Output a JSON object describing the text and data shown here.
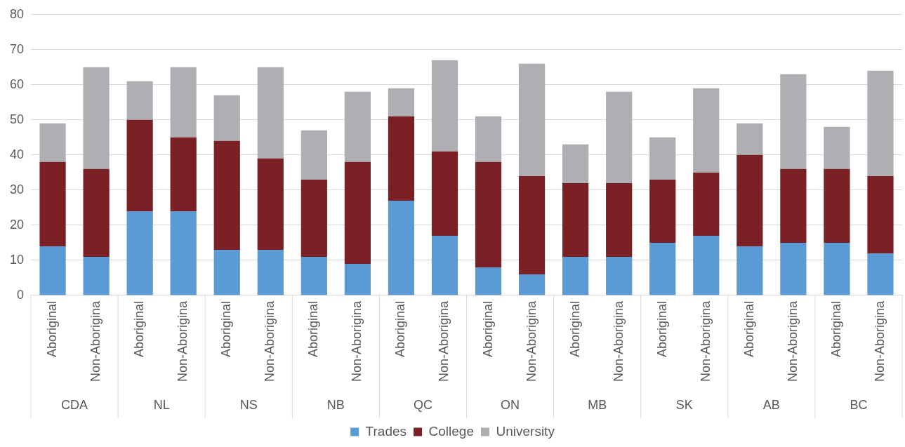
{
  "chart_data": {
    "type": "bar",
    "stacked": true,
    "categories": [
      "Aboriginal",
      "Non-Aborigina",
      "Aboriginal",
      "Non-Aborigina",
      "Aboriginal",
      "Non-Aborigina",
      "Aboriginal",
      "Non-Aborigina",
      "Aboriginal",
      "Non-Aborigina",
      "Aboriginal",
      "Non-Aborigina",
      "Aboriginal",
      "Non-Aborigina",
      "Aboriginal",
      "Non-Aborigina",
      "Aboriginal",
      "Non-Aborigina",
      "Aboriginal",
      "Non-Aborigina"
    ],
    "annotations": [
      "CDA",
      "NL",
      "NS",
      "NB",
      "QC",
      "ON",
      "MB",
      "SK",
      "AB",
      "BC"
    ],
    "series": [
      {
        "name": "Trades",
        "color": "#5b9bd5",
        "values": [
          14,
          11,
          24,
          24,
          13,
          13,
          11,
          9,
          27,
          17,
          8,
          6,
          11,
          11,
          15,
          17,
          14,
          15,
          15,
          12
        ]
      },
      {
        "name": "College",
        "color": "#7b2025",
        "values": [
          24,
          25,
          26,
          21,
          31,
          26,
          22,
          29,
          24,
          24,
          30,
          28,
          21,
          21,
          18,
          18,
          26,
          21,
          21,
          22
        ]
      },
      {
        "name": "University",
        "color": "#afafb3",
        "values": [
          11,
          29,
          11,
          20,
          13,
          26,
          14,
          20,
          8,
          26,
          13,
          32,
          11,
          26,
          12,
          24,
          9,
          27,
          12,
          30
        ]
      }
    ],
    "ylim": [
      0,
      80
    ],
    "yticks": [
      0,
      10,
      20,
      30,
      40,
      50,
      60,
      70,
      80
    ],
    "grid": "y",
    "legend": "bottom"
  }
}
